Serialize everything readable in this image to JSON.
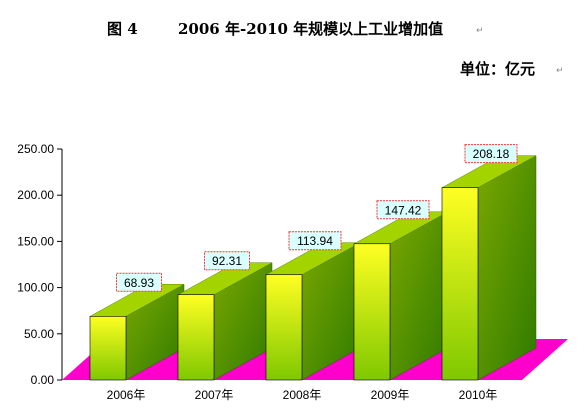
{
  "header": {
    "figure_label": "图 4",
    "title": "2006 年-2010 年规模以上工业增加值",
    "unit": "单位：亿元"
  },
  "colors": {
    "bar_front_top": "#ffff22",
    "bar_front_bottom": "#7fc800",
    "bar_top": "#a4d400",
    "bar_side": "#4a8a00",
    "floor": "#ff00cc",
    "label_bg": "#d9ffff",
    "label_border": "#ff3333"
  },
  "chart_data": {
    "type": "bar",
    "categories": [
      "2006年",
      "2007年",
      "2008年",
      "2009年",
      "2010年"
    ],
    "values": [
      68.93,
      92.31,
      113.94,
      147.42,
      208.18
    ],
    "data_labels": [
      "68.93",
      "92.31",
      "113.94",
      "147.42",
      "208.18"
    ],
    "ylim": [
      0,
      250
    ],
    "yticks": [
      "0.00",
      "50.00",
      "100.00",
      "150.00",
      "200.00",
      "250.00"
    ],
    "grid": false,
    "legend": "none"
  }
}
